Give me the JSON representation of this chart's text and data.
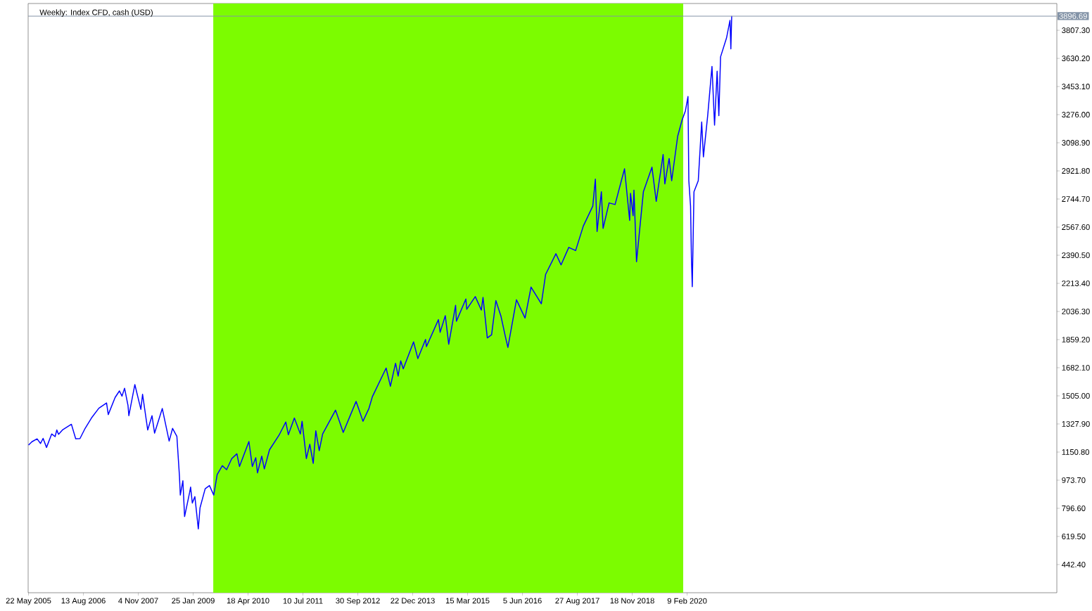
{
  "chart_data": {
    "type": "line",
    "title": "Weekly: Index CFD, cash (USD)",
    "x": [
      "2005-05-22",
      "2005-06-19",
      "2005-07-31",
      "2005-08-28",
      "2005-09-18",
      "2005-10-16",
      "2005-11-27",
      "2005-12-25",
      "2006-01-08",
      "2006-01-22",
      "2006-02-26",
      "2006-05-07",
      "2006-06-11",
      "2006-07-16",
      "2006-08-27",
      "2006-10-22",
      "2006-12-17",
      "2007-02-18",
      "2007-03-04",
      "2007-04-29",
      "2007-06-03",
      "2007-06-24",
      "2007-07-15",
      "2007-08-12",
      "2007-08-19",
      "2007-10-07",
      "2007-11-25",
      "2007-12-09",
      "2008-01-20",
      "2008-02-24",
      "2008-03-16",
      "2008-05-18",
      "2008-07-13",
      "2008-08-10",
      "2008-09-14",
      "2008-10-05",
      "2008-10-12",
      "2008-11-02",
      "2008-11-16",
      "2008-12-28",
      "2009-01-04",
      "2009-01-18",
      "2009-02-08",
      "2009-03-08",
      "2009-03-22",
      "2009-05-03",
      "2009-06-07",
      "2009-07-12",
      "2009-08-09",
      "2009-09-20",
      "2009-10-25",
      "2009-12-06",
      "2010-01-17",
      "2010-02-07",
      "2010-04-25",
      "2010-05-23",
      "2010-06-20",
      "2010-07-04",
      "2010-08-08",
      "2010-08-29",
      "2010-10-10",
      "2010-12-26",
      "2011-02-20",
      "2011-03-13",
      "2011-05-01",
      "2011-06-19",
      "2011-07-03",
      "2011-08-07",
      "2011-09-04",
      "2011-10-02",
      "2011-10-23",
      "2011-11-20",
      "2011-12-18",
      "2012-04-01",
      "2012-06-03",
      "2012-09-16",
      "2012-11-11",
      "2012-12-30",
      "2013-01-27",
      "2013-05-19",
      "2013-06-23",
      "2013-08-04",
      "2013-08-25",
      "2013-09-15",
      "2013-10-06",
      "2013-12-29",
      "2014-02-02",
      "2014-04-06",
      "2014-04-13",
      "2014-07-20",
      "2014-08-03",
      "2014-09-14",
      "2014-10-12",
      "2014-12-07",
      "2014-12-14",
      "2015-03-01",
      "2015-03-08",
      "2015-05-17",
      "2015-07-05",
      "2015-07-19",
      "2015-08-23",
      "2015-09-27",
      "2015-11-01",
      "2015-12-13",
      "2016-01-17",
      "2016-02-07",
      "2016-04-17",
      "2016-06-26",
      "2016-08-14",
      "2016-11-06",
      "2016-12-11",
      "2017-03-05",
      "2017-04-16",
      "2017-06-18",
      "2017-08-13",
      "2017-10-15",
      "2017-12-31",
      "2018-01-21",
      "2018-02-04",
      "2018-03-11",
      "2018-03-25",
      "2018-05-13",
      "2018-07-01",
      "2018-09-16",
      "2018-10-28",
      "2018-11-04",
      "2018-11-25",
      "2018-12-02",
      "2018-12-23",
      "2019-02-17",
      "2019-04-28",
      "2019-06-02",
      "2019-07-28",
      "2019-08-11",
      "2019-09-15",
      "2019-10-06",
      "2019-11-24",
      "2019-12-29",
      "2020-01-26",
      "2020-02-16",
      "2020-02-23",
      "2020-03-08",
      "2020-03-15",
      "2020-03-22",
      "2020-04-05",
      "2020-05-10",
      "2020-06-07",
      "2020-06-21",
      "2020-07-26",
      "2020-08-30",
      "2020-09-20",
      "2020-10-11",
      "2020-10-25",
      "2020-11-08",
      "2020-12-27",
      "2021-01-24",
      "2021-01-31",
      "2021-02-07"
    ],
    "values": [
      1195,
      1216,
      1234,
      1205,
      1237,
      1180,
      1265,
      1248,
      1290,
      1262,
      1292,
      1326,
      1235,
      1236,
      1300,
      1370,
      1427,
      1460,
      1387,
      1495,
      1536,
      1503,
      1553,
      1445,
      1380,
      1576,
      1420,
      1515,
      1290,
      1380,
      1270,
      1425,
      1220,
      1300,
      1250,
      1000,
      880,
      970,
      745,
      900,
      930,
      830,
      870,
      667,
      800,
      920,
      940,
      880,
      1010,
      1065,
      1040,
      1110,
      1140,
      1060,
      1217,
      1060,
      1115,
      1020,
      1125,
      1045,
      1165,
      1256,
      1340,
      1260,
      1365,
      1265,
      1345,
      1110,
      1200,
      1080,
      1285,
      1160,
      1265,
      1415,
      1275,
      1470,
      1345,
      1426,
      1500,
      1680,
      1565,
      1710,
      1630,
      1725,
      1675,
      1845,
      1740,
      1860,
      1815,
      1985,
      1905,
      2010,
      1830,
      2075,
      1975,
      2115,
      2050,
      2130,
      2045,
      2125,
      1870,
      1890,
      2105,
      2005,
      1880,
      1810,
      2110,
      1995,
      2190,
      2085,
      2270,
      2400,
      2330,
      2440,
      2420,
      2575,
      2700,
      2870,
      2540,
      2790,
      2560,
      2720,
      2710,
      2935,
      2610,
      2780,
      2640,
      2800,
      2350,
      2790,
      2945,
      2730,
      3025,
      2840,
      3000,
      2860,
      3140,
      3240,
      3300,
      3390,
      2860,
      2700,
      2380,
      2192,
      2790,
      2860,
      3230,
      3010,
      3270,
      3580,
      3210,
      3550,
      3270,
      3640,
      3760,
      3870,
      3690,
      3897
    ],
    "color": "#0000ff",
    "xlim": [
      "2005-05-19",
      "2028-05-15"
    ],
    "xticks": [
      {
        "value": "2005-05-22",
        "label": "22 May 2005"
      },
      {
        "value": "2006-08-13",
        "label": "13 Aug 2006"
      },
      {
        "value": "2007-11-04",
        "label": "4 Nov 2007"
      },
      {
        "value": "2009-01-25",
        "label": "25 Jan 2009"
      },
      {
        "value": "2010-04-18",
        "label": "18 Apr 2010"
      },
      {
        "value": "2011-07-10",
        "label": "10 Jul 2011"
      },
      {
        "value": "2012-09-30",
        "label": "30 Sep 2012"
      },
      {
        "value": "2013-12-22",
        "label": "22 Dec 2013"
      },
      {
        "value": "2015-03-15",
        "label": "15 Mar 2015"
      },
      {
        "value": "2016-06-05",
        "label": "5 Jun 2016"
      },
      {
        "value": "2017-08-27",
        "label": "27 Aug 2017"
      },
      {
        "value": "2018-11-18",
        "label": "18 Nov 2018"
      },
      {
        "value": "2020-02-09",
        "label": "9 Feb 2020"
      }
    ],
    "ylim": [
      265,
      3976
    ],
    "yticks": [
      {
        "value": 442.4,
        "label": "442.40"
      },
      {
        "value": 619.5,
        "label": "619.50"
      },
      {
        "value": 796.6,
        "label": "796.60"
      },
      {
        "value": 973.7,
        "label": "973.70"
      },
      {
        "value": 1150.8,
        "label": "1150.80"
      },
      {
        "value": 1327.9,
        "label": "1327.90"
      },
      {
        "value": 1505.0,
        "label": "1505.00"
      },
      {
        "value": 1682.1,
        "label": "1682.10"
      },
      {
        "value": 1859.2,
        "label": "1859.20"
      },
      {
        "value": 2036.3,
        "label": "2036.30"
      },
      {
        "value": 2213.4,
        "label": "2213.40"
      },
      {
        "value": 2390.5,
        "label": "2390.50"
      },
      {
        "value": 2567.6,
        "label": "2567.60"
      },
      {
        "value": 2744.7,
        "label": "2744.70"
      },
      {
        "value": 2921.8,
        "label": "2921.80"
      },
      {
        "value": 3098.9,
        "label": "3098.90"
      },
      {
        "value": 3276.0,
        "label": "3276.00"
      },
      {
        "value": 3453.1,
        "label": "3453.10"
      },
      {
        "value": 3630.2,
        "label": "3630.20"
      },
      {
        "value": 3807.3,
        "label": "3807.30"
      }
    ],
    "ref_lines": [
      {
        "axis": "y",
        "value": 3896.69,
        "label": "3896.69",
        "color": "#8393a7"
      }
    ],
    "bands": [
      {
        "axis": "x",
        "from": "2009-07-08",
        "to": "2020-01-08",
        "color": "#7cfc00"
      }
    ]
  }
}
